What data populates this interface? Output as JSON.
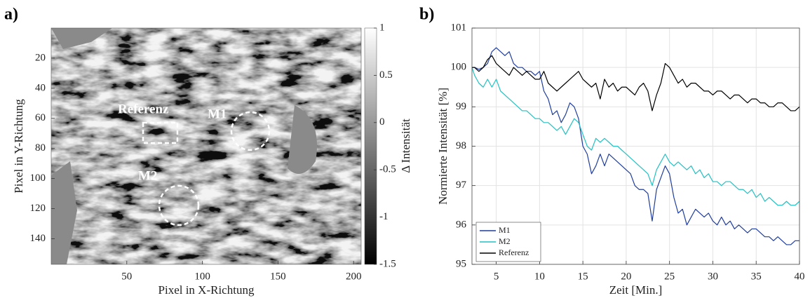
{
  "chart_data": [
    {
      "type": "heatmap",
      "panel_label": "a)",
      "xlabel": "Pixel in X-Richtung",
      "ylabel": "Pixel in Y-Richtung",
      "xlim": [
        0,
        205
      ],
      "ylim": [
        157,
        0
      ],
      "xticks": [
        50,
        100,
        150,
        200
      ],
      "yticks": [
        20,
        40,
        60,
        80,
        100,
        120,
        140
      ],
      "colorbar": {
        "label": "Δ Intensität",
        "lim": [
          -1.5,
          1
        ],
        "ticks": [
          1,
          0.5,
          0,
          -0.5,
          -1,
          -1.5
        ]
      },
      "annotations": [
        {
          "text": "Referenz"
        },
        {
          "text": "M1"
        },
        {
          "text": "M2"
        }
      ]
    },
    {
      "type": "line",
      "panel_label": "b)",
      "xlabel": "Zeit [Min.]",
      "ylabel": "Normierte Intensität [%]",
      "xlim": [
        2.2,
        40
      ],
      "ylim": [
        95,
        101
      ],
      "xticks": [
        5,
        10,
        15,
        20,
        25,
        30,
        35,
        40
      ],
      "yticks": [
        95,
        96,
        97,
        98,
        99,
        100,
        101
      ],
      "grid": true,
      "legend": "lower left",
      "x": [
        2.2,
        2.5,
        3,
        3.5,
        4,
        4.5,
        5,
        5.5,
        6,
        6.5,
        7,
        7.5,
        8,
        8.5,
        9,
        9.5,
        10,
        10.5,
        11,
        11.5,
        12,
        12.5,
        13,
        13.5,
        14,
        14.5,
        15,
        15.5,
        16,
        16.5,
        17,
        17.5,
        18,
        18.5,
        19,
        19.5,
        20,
        20.5,
        21,
        21.5,
        22,
        22.5,
        23,
        23.5,
        24,
        24.5,
        25,
        25.5,
        26,
        26.5,
        27,
        27.5,
        28,
        28.5,
        29,
        29.5,
        30,
        30.5,
        31,
        31.5,
        32,
        32.5,
        33,
        33.5,
        34,
        34.5,
        35,
        35.5,
        36,
        36.5,
        37,
        37.5,
        38,
        38.5,
        39,
        39.5,
        40
      ],
      "series": [
        {
          "name": "M1",
          "color": "#1f3d9c",
          "values": [
            100,
            100,
            99.95,
            100,
            100.1,
            100.4,
            100.5,
            100.4,
            100.3,
            100.4,
            100.1,
            100,
            100,
            99.9,
            99.9,
            99.8,
            99.9,
            99.4,
            99.2,
            98.8,
            98.9,
            98.6,
            98.8,
            99.1,
            99,
            98.7,
            98,
            97.8,
            97.3,
            97.5,
            97.8,
            97.5,
            97.8,
            97.7,
            97.6,
            97.5,
            97.4,
            97.3,
            97,
            96.9,
            96.9,
            96.8,
            96.1,
            96.9,
            97.2,
            97.5,
            97.3,
            96.7,
            96.3,
            96.4,
            96,
            96.2,
            96.4,
            96.3,
            96.2,
            96.3,
            96.1,
            96,
            96.2,
            96,
            96.1,
            95.9,
            96,
            95.9,
            95.8,
            95.9,
            95.9,
            95.8,
            95.7,
            95.7,
            95.6,
            95.7,
            95.6,
            95.5,
            95.5,
            95.6,
            95.6
          ]
        },
        {
          "name": "M2",
          "color": "#22c1c3",
          "values": [
            100,
            99.8,
            99.6,
            99.5,
            99.7,
            99.5,
            99.7,
            99.4,
            99.3,
            99.2,
            99.1,
            99,
            98.9,
            98.9,
            98.8,
            98.7,
            98.7,
            98.6,
            98.6,
            98.5,
            98.4,
            98.5,
            98.3,
            98.5,
            98.7,
            98.6,
            98.3,
            98,
            97.9,
            98.2,
            98.1,
            98.2,
            98.1,
            98,
            98,
            97.9,
            97.8,
            97.7,
            97.6,
            97.5,
            97.4,
            97.3,
            97,
            97.4,
            97.6,
            97.8,
            97.6,
            97.5,
            97.6,
            97.5,
            97.4,
            97.5,
            97.3,
            97.4,
            97.2,
            97.3,
            97.1,
            97.1,
            97,
            97.1,
            97.1,
            97,
            96.9,
            96.9,
            96.8,
            96.9,
            96.7,
            96.8,
            96.6,
            96.7,
            96.6,
            96.5,
            96.5,
            96.6,
            96.5,
            96.5,
            96.6
          ]
        },
        {
          "name": "Referenz",
          "color": "#000000",
          "values": [
            100,
            100,
            99.9,
            100,
            100.2,
            100.3,
            100.1,
            100,
            99.9,
            99.8,
            100,
            99.9,
            99.8,
            99.9,
            99.8,
            99.7,
            99.7,
            99.9,
            99.6,
            99.5,
            99.4,
            99.5,
            99.6,
            99.7,
            99.8,
            99.9,
            99.7,
            99.6,
            99.5,
            99.6,
            99.2,
            99.7,
            99.5,
            99.6,
            99.4,
            99.5,
            99.5,
            99.4,
            99.3,
            99.5,
            99.6,
            99.4,
            98.9,
            99.3,
            99.6,
            100.1,
            100,
            99.8,
            99.6,
            99.7,
            99.5,
            99.6,
            99.6,
            99.5,
            99.4,
            99.4,
            99.3,
            99.4,
            99.4,
            99.3,
            99.2,
            99.3,
            99.3,
            99.2,
            99.1,
            99.2,
            99.2,
            99.1,
            99.1,
            99,
            99,
            99.1,
            99.1,
            99,
            98.9,
            98.9,
            99
          ]
        }
      ]
    }
  ]
}
